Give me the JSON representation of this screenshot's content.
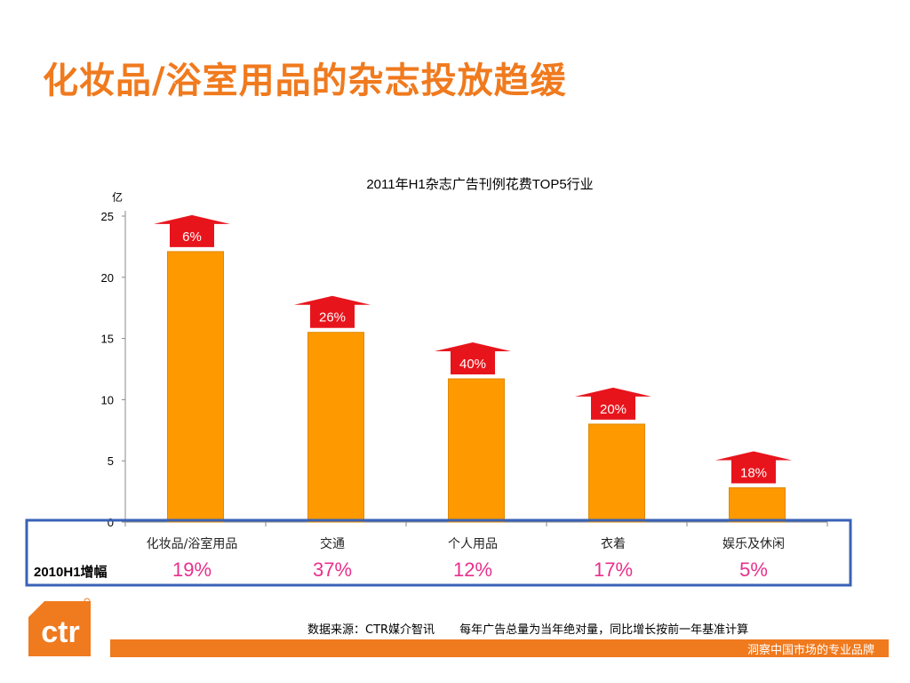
{
  "slide": {
    "title": "化妆品/浴室用品的杂志投放趋缓",
    "prev_growth_row_label": "2010H1增幅",
    "source": "数据来源：CTR媒介智讯",
    "note": "每年广告总量为当年绝对量，同比增长按前一年基准计算",
    "tagline": "洞察中国市场的专业品牌",
    "logo_text": "ctr"
  },
  "colors": {
    "bar": "#FF9900",
    "arrow": "#E8141C",
    "accent_orange": "#F07A1E",
    "highlight_border": "#3A62B6",
    "prev_growth_text": "#E8308C"
  },
  "chart_data": {
    "type": "bar",
    "title": "2011年H1杂志广告刊例花费TOP5行业",
    "y_unit": "亿",
    "ylim": [
      0,
      25
    ],
    "yticks": [
      0,
      5,
      10,
      15,
      20,
      25
    ],
    "categories": [
      "化妆品/浴室用品",
      "交通",
      "个人用品",
      "衣着",
      "娱乐及休闲"
    ],
    "values": [
      22.1,
      15.5,
      11.7,
      8.0,
      2.8
    ],
    "growth_2011H1": [
      "6%",
      "26%",
      "40%",
      "20%",
      "18%"
    ],
    "growth_2010H1": [
      "19%",
      "37%",
      "12%",
      "17%",
      "5%"
    ],
    "grid": false,
    "legend": "none"
  }
}
